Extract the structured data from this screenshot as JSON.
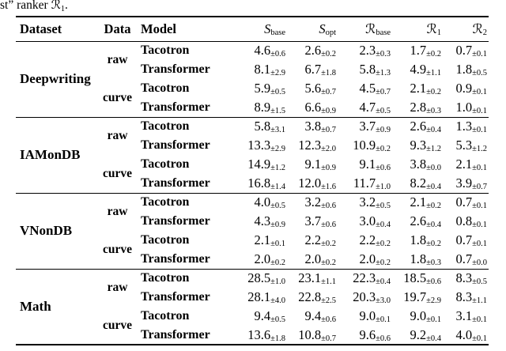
{
  "caption": {
    "prefix": "st” ranker",
    "symbol": "ℛ",
    "sub": "1",
    "suffix": "."
  },
  "colors": {
    "text": "#000000",
    "background": "#ffffff",
    "rule": "#000000"
  },
  "table": {
    "plus_minus": "±",
    "col_headers": {
      "dataset": "Dataset",
      "data": "Data",
      "model": "Model"
    },
    "metric_headers": [
      {
        "symbol": "S",
        "sub": "base",
        "script": false
      },
      {
        "symbol": "S",
        "sub": "opt",
        "script": false
      },
      {
        "symbol": "ℛ",
        "sub": "base",
        "script": true
      },
      {
        "symbol": "ℛ",
        "sub": "1",
        "script": true
      },
      {
        "symbol": "ℛ",
        "sub": "2",
        "script": true
      }
    ],
    "sections": [
      {
        "dataset": "Deepwriting",
        "groups": [
          {
            "data": "raw",
            "rows": [
              {
                "model": "Tacotron",
                "values": [
                  [
                    "4.6",
                    "0.6"
                  ],
                  [
                    "2.6",
                    "0.2"
                  ],
                  [
                    "2.3",
                    "0.3"
                  ],
                  [
                    "1.7",
                    "0.2"
                  ],
                  [
                    "0.7",
                    "0.1"
                  ]
                ]
              },
              {
                "model": "Transformer",
                "values": [
                  [
                    "8.1",
                    "2.9"
                  ],
                  [
                    "6.7",
                    "1.8"
                  ],
                  [
                    "5.8",
                    "1.3"
                  ],
                  [
                    "4.9",
                    "1.1"
                  ],
                  [
                    "1.8",
                    "0.5"
                  ]
                ]
              }
            ]
          },
          {
            "data": "curve",
            "rows": [
              {
                "model": "Tacotron",
                "values": [
                  [
                    "5.9",
                    "0.5"
                  ],
                  [
                    "5.6",
                    "0.7"
                  ],
                  [
                    "4.5",
                    "0.7"
                  ],
                  [
                    "2.1",
                    "0.2"
                  ],
                  [
                    "0.9",
                    "0.1"
                  ]
                ]
              },
              {
                "model": "Transformer",
                "values": [
                  [
                    "8.9",
                    "1.5"
                  ],
                  [
                    "6.6",
                    "0.9"
                  ],
                  [
                    "4.7",
                    "0.5"
                  ],
                  [
                    "2.8",
                    "0.3"
                  ],
                  [
                    "1.0",
                    "0.1"
                  ]
                ]
              }
            ]
          }
        ]
      },
      {
        "dataset": "IAMonDB",
        "groups": [
          {
            "data": "raw",
            "rows": [
              {
                "model": "Tacotron",
                "values": [
                  [
                    "5.8",
                    "3.1"
                  ],
                  [
                    "3.8",
                    "0.7"
                  ],
                  [
                    "3.7",
                    "0.9"
                  ],
                  [
                    "2.6",
                    "0.4"
                  ],
                  [
                    "1.3",
                    "0.1"
                  ]
                ]
              },
              {
                "model": "Transformer",
                "values": [
                  [
                    "13.3",
                    "2.9"
                  ],
                  [
                    "12.3",
                    "2.0"
                  ],
                  [
                    "10.9",
                    "0.2"
                  ],
                  [
                    "9.3",
                    "1.2"
                  ],
                  [
                    "5.3",
                    "1.2"
                  ]
                ]
              }
            ]
          },
          {
            "data": "curve",
            "rows": [
              {
                "model": "Tacotron",
                "values": [
                  [
                    "14.9",
                    "1.2"
                  ],
                  [
                    "9.1",
                    "0.9"
                  ],
                  [
                    "9.1",
                    "0.6"
                  ],
                  [
                    "3.8",
                    "0.0"
                  ],
                  [
                    "2.1",
                    "0.1"
                  ]
                ]
              },
              {
                "model": "Transformer",
                "values": [
                  [
                    "16.8",
                    "1.4"
                  ],
                  [
                    "12.0",
                    "1.6"
                  ],
                  [
                    "11.7",
                    "1.0"
                  ],
                  [
                    "8.2",
                    "0.4"
                  ],
                  [
                    "3.9",
                    "0.7"
                  ]
                ]
              }
            ]
          }
        ]
      },
      {
        "dataset": "VNonDB",
        "groups": [
          {
            "data": "raw",
            "rows": [
              {
                "model": "Tacotron",
                "values": [
                  [
                    "4.0",
                    "0.5"
                  ],
                  [
                    "3.2",
                    "0.6"
                  ],
                  [
                    "3.2",
                    "0.5"
                  ],
                  [
                    "2.1",
                    "0.2"
                  ],
                  [
                    "0.7",
                    "0.1"
                  ]
                ]
              },
              {
                "model": "Transformer",
                "values": [
                  [
                    "4.3",
                    "0.9"
                  ],
                  [
                    "3.7",
                    "0.6"
                  ],
                  [
                    "3.0",
                    "0.4"
                  ],
                  [
                    "2.6",
                    "0.4"
                  ],
                  [
                    "0.8",
                    "0.1"
                  ]
                ]
              }
            ]
          },
          {
            "data": "curve",
            "rows": [
              {
                "model": "Tacotron",
                "values": [
                  [
                    "2.1",
                    "0.1"
                  ],
                  [
                    "2.2",
                    "0.2"
                  ],
                  [
                    "2.2",
                    "0.2"
                  ],
                  [
                    "1.8",
                    "0.2"
                  ],
                  [
                    "0.7",
                    "0.1"
                  ]
                ]
              },
              {
                "model": "Transformer",
                "values": [
                  [
                    "2.0",
                    "0.2"
                  ],
                  [
                    "2.0",
                    "0.2"
                  ],
                  [
                    "2.0",
                    "0.2"
                  ],
                  [
                    "1.8",
                    "0.3"
                  ],
                  [
                    "0.7",
                    "0.0"
                  ]
                ]
              }
            ]
          }
        ]
      },
      {
        "dataset": "Math",
        "groups": [
          {
            "data": "raw",
            "rows": [
              {
                "model": "Tacotron",
                "values": [
                  [
                    "28.5",
                    "1.0"
                  ],
                  [
                    "23.1",
                    "1.1"
                  ],
                  [
                    "22.3",
                    "0.4"
                  ],
                  [
                    "18.5",
                    "0.6"
                  ],
                  [
                    "8.3",
                    "0.5"
                  ]
                ]
              },
              {
                "model": "Transformer",
                "values": [
                  [
                    "28.1",
                    "4.0"
                  ],
                  [
                    "22.8",
                    "2.5"
                  ],
                  [
                    "20.3",
                    "3.0"
                  ],
                  [
                    "19.7",
                    "2.9"
                  ],
                  [
                    "8.3",
                    "1.1"
                  ]
                ]
              }
            ]
          },
          {
            "data": "curve",
            "rows": [
              {
                "model": "Tacotron",
                "values": [
                  [
                    "9.4",
                    "0.5"
                  ],
                  [
                    "9.4",
                    "0.6"
                  ],
                  [
                    "9.0",
                    "0.1"
                  ],
                  [
                    "9.0",
                    "0.1"
                  ],
                  [
                    "3.1",
                    "0.1"
                  ]
                ]
              },
              {
                "model": "Transformer",
                "values": [
                  [
                    "13.6",
                    "1.8"
                  ],
                  [
                    "10.8",
                    "0.7"
                  ],
                  [
                    "9.6",
                    "0.6"
                  ],
                  [
                    "9.2",
                    "0.4"
                  ],
                  [
                    "4.0",
                    "0.1"
                  ]
                ]
              }
            ]
          }
        ]
      }
    ]
  }
}
